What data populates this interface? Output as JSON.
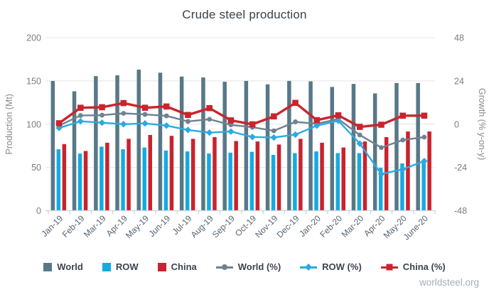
{
  "page": {
    "watermark": "worldsteel.org"
  },
  "chart_data": {
    "type": "combo-bar-line",
    "title": "Crude steel production",
    "grid": "horizontal",
    "legend_position": "bottom",
    "categories": [
      "Jan-19",
      "Feb-19",
      "Mar-19",
      "Apr-19",
      "May-19",
      "Jun-19",
      "Jul-19",
      "Aug-19",
      "Sep-19",
      "Oct-19",
      "Nov-19",
      "Dec-19",
      "Jan-20",
      "Feb-20",
      "Mar-20",
      "Apr-20",
      "May-20",
      "June-20"
    ],
    "left_axis": {
      "label": "Production (Mt)",
      "range": [
        0,
        200
      ],
      "ticks": [
        0,
        50,
        100,
        150,
        200
      ]
    },
    "right_axis": {
      "label": "Growth (% y-on-y)",
      "range": [
        -48,
        48
      ],
      "ticks": [
        -48,
        -24,
        0,
        24,
        48
      ]
    },
    "bar_series": [
      {
        "name": "World",
        "color": "#587888",
        "values": [
          150,
          138,
          155.5,
          156.5,
          163,
          159.5,
          155,
          154,
          149,
          150,
          146,
          150,
          149.5,
          143,
          146.5,
          135.5,
          147.5,
          147.5
        ]
      },
      {
        "name": "ROW",
        "color": "#16aae2",
        "values": [
          71,
          66,
          74,
          71,
          73,
          69.5,
          68.5,
          66,
          67,
          68,
          64.5,
          66.5,
          68.5,
          66.5,
          66.5,
          49.5,
          54.5,
          55.5
        ]
      },
      {
        "name": "China",
        "color": "#c8232e",
        "values": [
          77,
          69,
          78.5,
          83,
          87.5,
          86.5,
          83,
          85,
          80.5,
          80,
          76.5,
          83,
          78.5,
          73,
          80,
          85,
          91.5,
          91.5
        ]
      }
    ],
    "line_series": [
      {
        "name": "World (%)",
        "color": "#6f8290",
        "marker": "circle",
        "values": [
          -0.8,
          4.8,
          5.0,
          6.0,
          5.4,
          4.6,
          1.5,
          2.7,
          -0.4,
          -1.7,
          -3.7,
          1.3,
          0.2,
          2.8,
          -6.0,
          -13.0,
          -8.8,
          -7.2
        ]
      },
      {
        "name": "ROW (%)",
        "color": "#29abe2",
        "marker": "diamond",
        "values": [
          -2.1,
          1.6,
          0.8,
          0.0,
          0.4,
          -0.8,
          -3.2,
          -4.7,
          -4.1,
          -7.1,
          -7.4,
          -5.8,
          -0.8,
          1.9,
          -10.8,
          -27.7,
          -25.0,
          -20.5
        ]
      },
      {
        "name": "China (%)",
        "color": "#c9252c",
        "marker": "square",
        "values": [
          0.5,
          9.1,
          9.4,
          11.7,
          9.1,
          9.8,
          5.1,
          8.9,
          2.1,
          -0.1,
          4.3,
          11.8,
          2.2,
          4.9,
          -1.5,
          -0.3,
          4.7,
          4.7
        ]
      }
    ],
    "style": {
      "grid_color": "#e4e4e4",
      "axis_line_color": "#c7d6e2",
      "tick_text_color": "#7d7d7d",
      "axis_title_color": "#8a8a8a",
      "category_text_color": "#566572",
      "title_color": "#3a4147"
    }
  }
}
